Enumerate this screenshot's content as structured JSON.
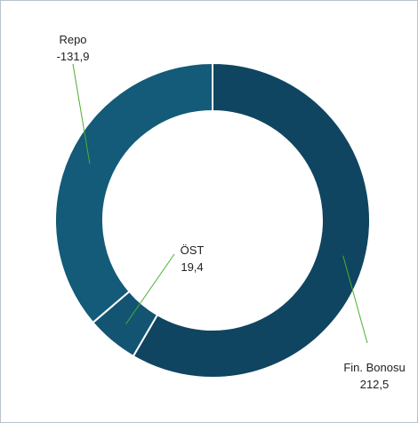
{
  "chart_data": {
    "type": "pie",
    "variant": "donut",
    "title": "",
    "slices": [
      {
        "name": "Fin. Bonosu",
        "value": 212.5,
        "value_label": "212,5",
        "color": "#0f4560"
      },
      {
        "name": "ÖST",
        "value": 19.4,
        "value_label": "19,4",
        "color": "#135472"
      },
      {
        "name": "Repo",
        "value": -131.9,
        "value_label": "-131,9",
        "color": "#145a79"
      }
    ],
    "legend": "none",
    "data_labels": "outside with leader lines"
  }
}
